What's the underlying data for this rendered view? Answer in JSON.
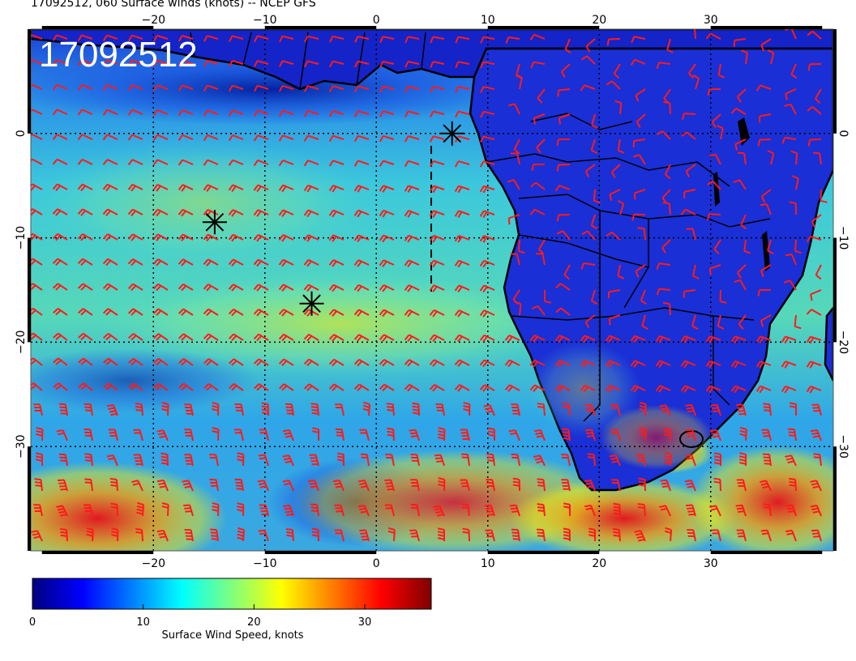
{
  "title": "17092512, 060 Surface winds (knots) -- NCEP GFS",
  "stamp": "17092512",
  "map": {
    "lon_range": [
      -31,
      41
    ],
    "lat_range": [
      -40,
      10
    ],
    "lon_ticks": [
      -20,
      -10,
      0,
      10,
      20,
      30
    ],
    "lon_tick_labels": [
      "−20",
      "−10",
      "0",
      "10",
      "20",
      "30"
    ],
    "lat_ticks": [
      0,
      -10,
      -20,
      -30
    ],
    "lat_tick_labels": [
      "0",
      "−10",
      "−20",
      "−30"
    ],
    "grid": "dotted",
    "grid_step_deg": 10,
    "barb_color": "#ff1a1a",
    "markers": [
      {
        "lon": 6.8,
        "lat": 0.0
      },
      {
        "lon": -14.5,
        "lat": -8.5
      },
      {
        "lon": -5.8,
        "lat": -16.3
      }
    ]
  },
  "colorbar": {
    "label": "Surface Wind Speed, knots",
    "range": [
      0,
      36
    ],
    "ticks": [
      0,
      10,
      20,
      30
    ],
    "tick_labels": [
      "0",
      "10",
      "20",
      "30"
    ],
    "colormap": [
      "#00007f",
      "#0000ff",
      "#007fff",
      "#00ffff",
      "#7fff7f",
      "#ffff00",
      "#ff7f00",
      "#ff0000",
      "#7f0000"
    ]
  }
}
